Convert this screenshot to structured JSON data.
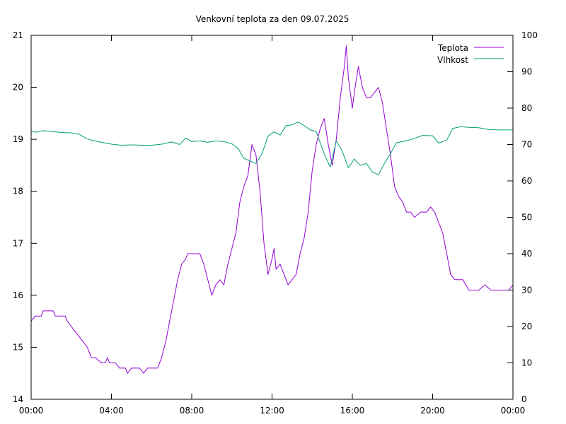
{
  "chart_data": {
    "type": "line",
    "title": "Venkovní teplota za den 09.07.2025",
    "x_ticks": [
      "00:00",
      "04:00",
      "08:00",
      "12:00",
      "16:00",
      "20:00",
      "00:00"
    ],
    "x_range_hours": [
      0,
      24
    ],
    "y_left": {
      "range": [
        14,
        21
      ],
      "ticks": [
        "14",
        "15",
        "16",
        "17",
        "18",
        "19",
        "20",
        "21"
      ]
    },
    "y_right": {
      "range": [
        0,
        100
      ],
      "ticks": [
        "0",
        "10",
        "20",
        "30",
        "40",
        "50",
        "60",
        "70",
        "80",
        "90",
        "100"
      ]
    },
    "legend_position": "top-right",
    "grid": false,
    "series": [
      {
        "name": "Teplota",
        "axis": "left",
        "color": "#9400d3",
        "points": [
          [
            0.0,
            15.5
          ],
          [
            0.2,
            15.6
          ],
          [
            0.5,
            15.6
          ],
          [
            0.6,
            15.7
          ],
          [
            1.1,
            15.7
          ],
          [
            1.2,
            15.6
          ],
          [
            1.7,
            15.6
          ],
          [
            1.8,
            15.5
          ],
          [
            2.0,
            15.4
          ],
          [
            2.2,
            15.3
          ],
          [
            2.4,
            15.2
          ],
          [
            2.6,
            15.1
          ],
          [
            2.8,
            15.0
          ],
          [
            2.9,
            14.9
          ],
          [
            3.0,
            14.8
          ],
          [
            3.2,
            14.8
          ],
          [
            3.5,
            14.7
          ],
          [
            3.7,
            14.7
          ],
          [
            3.8,
            14.8
          ],
          [
            3.9,
            14.7
          ],
          [
            4.2,
            14.7
          ],
          [
            4.4,
            14.6
          ],
          [
            4.7,
            14.6
          ],
          [
            4.8,
            14.5
          ],
          [
            5.0,
            14.6
          ],
          [
            5.4,
            14.6
          ],
          [
            5.6,
            14.5
          ],
          [
            5.8,
            14.6
          ],
          [
            6.1,
            14.6
          ],
          [
            6.3,
            14.6
          ],
          [
            6.5,
            14.8
          ],
          [
            6.7,
            15.1
          ],
          [
            6.9,
            15.5
          ],
          [
            7.1,
            15.9
          ],
          [
            7.3,
            16.3
          ],
          [
            7.5,
            16.6
          ],
          [
            7.7,
            16.7
          ],
          [
            7.8,
            16.8
          ],
          [
            8.1,
            16.8
          ],
          [
            8.4,
            16.8
          ],
          [
            8.6,
            16.6
          ],
          [
            8.8,
            16.3
          ],
          [
            9.0,
            16.0
          ],
          [
            9.2,
            16.2
          ],
          [
            9.4,
            16.3
          ],
          [
            9.6,
            16.2
          ],
          [
            9.8,
            16.6
          ],
          [
            10.0,
            16.9
          ],
          [
            10.2,
            17.2
          ],
          [
            10.4,
            17.8
          ],
          [
            10.6,
            18.1
          ],
          [
            10.8,
            18.3
          ],
          [
            11.0,
            18.9
          ],
          [
            11.2,
            18.7
          ],
          [
            11.4,
            18.0
          ],
          [
            11.6,
            17.0
          ],
          [
            11.8,
            16.4
          ],
          [
            12.0,
            16.7
          ],
          [
            12.1,
            16.9
          ],
          [
            12.2,
            16.5
          ],
          [
            12.4,
            16.6
          ],
          [
            12.6,
            16.4
          ],
          [
            12.8,
            16.2
          ],
          [
            13.0,
            16.3
          ],
          [
            13.2,
            16.4
          ],
          [
            13.4,
            16.8
          ],
          [
            13.6,
            17.1
          ],
          [
            13.8,
            17.6
          ],
          [
            14.0,
            18.4
          ],
          [
            14.2,
            18.9
          ],
          [
            14.4,
            19.2
          ],
          [
            14.6,
            19.4
          ],
          [
            14.8,
            18.9
          ],
          [
            15.0,
            18.5
          ],
          [
            15.2,
            19.0
          ],
          [
            15.4,
            19.8
          ],
          [
            15.6,
            20.4
          ],
          [
            15.7,
            20.8
          ],
          [
            15.8,
            20.2
          ],
          [
            16.0,
            19.6
          ],
          [
            16.1,
            19.9
          ],
          [
            16.3,
            20.4
          ],
          [
            16.5,
            20.0
          ],
          [
            16.7,
            19.8
          ],
          [
            16.9,
            19.8
          ],
          [
            17.1,
            19.9
          ],
          [
            17.3,
            20.0
          ],
          [
            17.5,
            19.7
          ],
          [
            17.7,
            19.2
          ],
          [
            17.9,
            18.7
          ],
          [
            18.1,
            18.1
          ],
          [
            18.3,
            17.9
          ],
          [
            18.5,
            17.8
          ],
          [
            18.7,
            17.6
          ],
          [
            18.9,
            17.6
          ],
          [
            19.1,
            17.5
          ],
          [
            19.4,
            17.6
          ],
          [
            19.7,
            17.6
          ],
          [
            19.9,
            17.7
          ],
          [
            20.1,
            17.6
          ],
          [
            20.3,
            17.4
          ],
          [
            20.5,
            17.2
          ],
          [
            20.7,
            16.8
          ],
          [
            20.9,
            16.4
          ],
          [
            21.1,
            16.3
          ],
          [
            21.5,
            16.3
          ],
          [
            21.8,
            16.1
          ],
          [
            22.0,
            16.1
          ],
          [
            22.3,
            16.1
          ],
          [
            22.6,
            16.2
          ],
          [
            22.9,
            16.1
          ],
          [
            23.5,
            16.1
          ],
          [
            23.8,
            16.1
          ],
          [
            24.0,
            16.2
          ]
        ]
      },
      {
        "name": "Vlhkost",
        "axis": "right",
        "color": "#009e73",
        "points": [
          [
            0.0,
            73.6
          ],
          [
            0.3,
            73.4
          ],
          [
            0.6,
            73.8
          ],
          [
            1.0,
            73.6
          ],
          [
            1.5,
            73.3
          ],
          [
            2.0,
            73.2
          ],
          [
            2.4,
            72.8
          ],
          [
            2.7,
            71.8
          ],
          [
            3.0,
            71.2
          ],
          [
            3.5,
            70.6
          ],
          [
            4.0,
            70.1
          ],
          [
            4.5,
            69.8
          ],
          [
            5.0,
            69.9
          ],
          [
            5.5,
            69.8
          ],
          [
            6.0,
            69.8
          ],
          [
            6.5,
            70.1
          ],
          [
            7.0,
            70.7
          ],
          [
            7.4,
            70.0
          ],
          [
            7.7,
            71.8
          ],
          [
            8.0,
            70.8
          ],
          [
            8.4,
            71.0
          ],
          [
            8.8,
            70.6
          ],
          [
            9.2,
            71.0
          ],
          [
            9.6,
            70.8
          ],
          [
            10.0,
            70.2
          ],
          [
            10.3,
            69.0
          ],
          [
            10.6,
            66.2
          ],
          [
            10.9,
            65.5
          ],
          [
            11.2,
            64.8
          ],
          [
            11.5,
            67.5
          ],
          [
            11.8,
            72.3
          ],
          [
            12.1,
            73.5
          ],
          [
            12.4,
            72.6
          ],
          [
            12.7,
            75.2
          ],
          [
            13.0,
            75.4
          ],
          [
            13.3,
            76.2
          ],
          [
            13.6,
            75.2
          ],
          [
            13.9,
            74.0
          ],
          [
            14.2,
            73.6
          ],
          [
            14.6,
            67.4
          ],
          [
            14.9,
            63.8
          ],
          [
            15.2,
            71.0
          ],
          [
            15.5,
            68.2
          ],
          [
            15.8,
            63.6
          ],
          [
            16.1,
            66.0
          ],
          [
            16.4,
            64.3
          ],
          [
            16.7,
            64.8
          ],
          [
            17.0,
            62.4
          ],
          [
            17.3,
            61.7
          ],
          [
            17.6,
            64.8
          ],
          [
            17.9,
            67.5
          ],
          [
            18.2,
            70.5
          ],
          [
            18.6,
            70.9
          ],
          [
            19.0,
            71.5
          ],
          [
            19.5,
            72.5
          ],
          [
            20.0,
            72.4
          ],
          [
            20.3,
            70.4
          ],
          [
            20.7,
            71.2
          ],
          [
            21.0,
            74.4
          ],
          [
            21.4,
            74.9
          ],
          [
            21.8,
            74.7
          ],
          [
            22.3,
            74.6
          ],
          [
            22.8,
            74.1
          ],
          [
            23.3,
            74.0
          ],
          [
            24.0,
            74.0
          ]
        ]
      }
    ]
  }
}
